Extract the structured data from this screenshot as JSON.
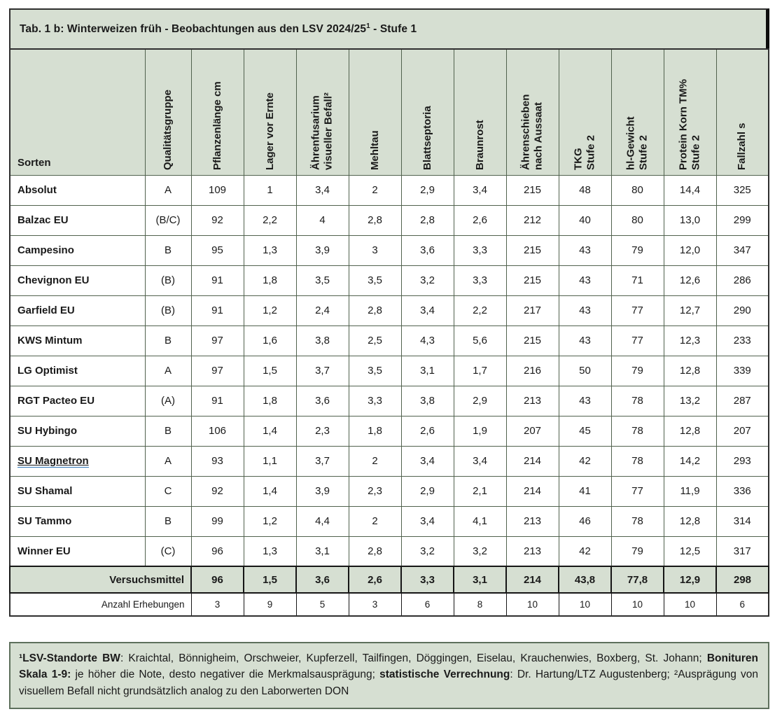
{
  "title": {
    "prefix": "Tab. 1 b: Winterweizen früh - Beobachtungen aus den LSV 2024/25",
    "superscript": "1",
    "suffix": " - Stufe 1"
  },
  "table": {
    "row_header_label": "Sorten",
    "columns": [
      {
        "id": "qualitaetsgruppe",
        "label": "Qualitätsgruppe"
      },
      {
        "id": "pflanzenlaenge-cm",
        "label": "Pflanzenlänge cm"
      },
      {
        "id": "lager-vor-ernte",
        "label": "Lager vor Ernte"
      },
      {
        "id": "aehrenfusarium",
        "label": "Ährenfusarium\nvisueller Befall²"
      },
      {
        "id": "mehltau",
        "label": "Mehltau"
      },
      {
        "id": "blattseptoria",
        "label": "Blattseptoria"
      },
      {
        "id": "braunrost",
        "label": "Braunrost"
      },
      {
        "id": "aehrenschieben",
        "label": "Ährenschieben\nnach Aussaat"
      },
      {
        "id": "tkg-stufe2",
        "label": "TKG\nStufe 2"
      },
      {
        "id": "hl-gewicht-stufe2",
        "label": "hl-Gewicht\nStufe 2"
      },
      {
        "id": "protein-korn-stufe2",
        "label": "Protein Korn TM%\nStufe 2"
      },
      {
        "id": "fallzahl-s",
        "label": "Fallzahl s"
      }
    ],
    "rows": [
      {
        "name": "Absolut",
        "link": false,
        "values": [
          "A",
          "109",
          "1",
          "3,4",
          "2",
          "2,9",
          "3,4",
          "215",
          "48",
          "80",
          "14,4",
          "325"
        ]
      },
      {
        "name": "Balzac EU",
        "link": false,
        "values": [
          "(B/C)",
          "92",
          "2,2",
          "4",
          "2,8",
          "2,8",
          "2,6",
          "212",
          "40",
          "80",
          "13,0",
          "299"
        ]
      },
      {
        "name": "Campesino",
        "link": false,
        "values": [
          "B",
          "95",
          "1,3",
          "3,9",
          "3",
          "3,6",
          "3,3",
          "215",
          "43",
          "79",
          "12,0",
          "347"
        ]
      },
      {
        "name": "Chevignon EU",
        "link": false,
        "values": [
          "(B)",
          "91",
          "1,8",
          "3,5",
          "3,5",
          "3,2",
          "3,3",
          "215",
          "43",
          "71",
          "12,6",
          "286"
        ]
      },
      {
        "name": "Garfield EU",
        "link": false,
        "values": [
          "(B)",
          "91",
          "1,2",
          "2,4",
          "2,8",
          "3,4",
          "2,2",
          "217",
          "43",
          "77",
          "12,7",
          "290"
        ]
      },
      {
        "name": "KWS Mintum",
        "link": false,
        "values": [
          "B",
          "97",
          "1,6",
          "3,8",
          "2,5",
          "4,3",
          "5,6",
          "215",
          "43",
          "77",
          "12,3",
          "233"
        ]
      },
      {
        "name": "LG Optimist",
        "link": false,
        "values": [
          "A",
          "97",
          "1,5",
          "3,7",
          "3,5",
          "3,1",
          "1,7",
          "216",
          "50",
          "79",
          "12,8",
          "339"
        ]
      },
      {
        "name": "RGT Pacteo EU",
        "link": false,
        "values": [
          "(A)",
          "91",
          "1,8",
          "3,6",
          "3,3",
          "3,8",
          "2,9",
          "213",
          "43",
          "78",
          "13,2",
          "287"
        ]
      },
      {
        "name": "SU Hybingo",
        "link": false,
        "values": [
          "B",
          "106",
          "1,4",
          "2,3",
          "1,8",
          "2,6",
          "1,9",
          "207",
          "45",
          "78",
          "12,8",
          "207"
        ]
      },
      {
        "name": "SU Magnetron",
        "link": true,
        "values": [
          "A",
          "93",
          "1,1",
          "3,7",
          "2",
          "3,4",
          "3,4",
          "214",
          "42",
          "78",
          "14,2",
          "293"
        ]
      },
      {
        "name": "SU Shamal",
        "link": false,
        "values": [
          "C",
          "92",
          "1,4",
          "3,9",
          "2,3",
          "2,9",
          "2,1",
          "214",
          "41",
          "77",
          "11,9",
          "336"
        ]
      },
      {
        "name": "SU Tammo",
        "link": false,
        "values": [
          "B",
          "99",
          "1,2",
          "4,4",
          "2",
          "3,4",
          "4,1",
          "213",
          "46",
          "78",
          "12,8",
          "314"
        ]
      },
      {
        "name": "Winner EU",
        "link": false,
        "values": [
          "(C)",
          "96",
          "1,3",
          "3,1",
          "2,8",
          "3,2",
          "3,2",
          "213",
          "42",
          "79",
          "12,5",
          "317"
        ]
      }
    ],
    "summary": {
      "label": "Versuchsmittel",
      "values": [
        "96",
        "1,5",
        "3,6",
        "2,6",
        "3,3",
        "3,1",
        "214",
        "43,8",
        "77,8",
        "12,9",
        "298"
      ]
    },
    "counts": {
      "label": "Anzahl Erhebungen",
      "values": [
        "3",
        "9",
        "5",
        "3",
        "6",
        "8",
        "10",
        "10",
        "10",
        "10",
        "6"
      ]
    }
  },
  "footnote": {
    "segments": [
      {
        "text": "¹LSV-Standorte BW",
        "bold": true
      },
      {
        "text": ": Kraichtal, Bönnigheim, Orschweier, Kupferzell, Tailfingen, Döggingen, Eiselau, Krauchenwies, Boxberg, St. Johann; ",
        "bold": false
      },
      {
        "text": "Bonituren Skala 1-9:",
        "bold": true
      },
      {
        "text": " je höher die Note, desto negativer die Merkmalsausprägung; ",
        "bold": false
      },
      {
        "text": "statistische Verrechnung",
        "bold": true
      },
      {
        "text": ": Dr. Hartung/LTZ Augustenberg; ²Ausprägung von visuellem Befall nicht grundsätzlich analog zu den Laborwerten DON",
        "bold": false
      }
    ]
  },
  "colors": {
    "panel_green": "#d6dfd2",
    "grid_green": "#51624e",
    "outer_border": "#2f2f2f",
    "summary_border": "#161616",
    "text": "#1a1a1a",
    "link_underline_blue": "#2e75b6"
  }
}
